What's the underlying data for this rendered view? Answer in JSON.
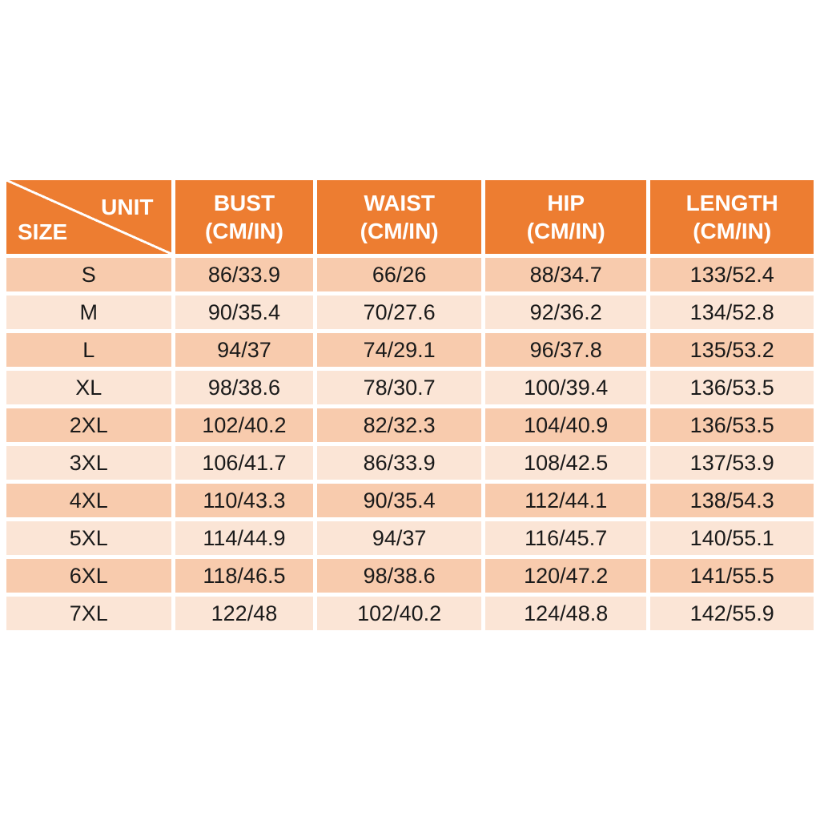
{
  "chart_data": {
    "type": "table",
    "columns": [
      "SIZE",
      "BUST (CM/IN)",
      "WAIST (CM/IN)",
      "HIP (CM/IN)",
      "LENGTH (CM/IN)"
    ],
    "rows": [
      [
        "S",
        "86/33.9",
        "66/26",
        "88/34.7",
        "133/52.4"
      ],
      [
        "M",
        "90/35.4",
        "70/27.6",
        "92/36.2",
        "134/52.8"
      ],
      [
        "L",
        "94/37",
        "74/29.1",
        "96/37.8",
        "135/53.2"
      ],
      [
        "XL",
        "98/38.6",
        "78/30.7",
        "100/39.4",
        "136/53.5"
      ],
      [
        "2XL",
        "102/40.2",
        "82/32.3",
        "104/40.9",
        "136/53.5"
      ],
      [
        "3XL",
        "106/41.7",
        "86/33.9",
        "108/42.5",
        "137/53.9"
      ],
      [
        "4XL",
        "110/43.3",
        "90/35.4",
        "112/44.1",
        "138/54.3"
      ],
      [
        "5XL",
        "114/44.9",
        "94/37",
        "116/45.7",
        "140/55.1"
      ],
      [
        "6XL",
        "118/46.5",
        "98/38.6",
        "120/47.2",
        "141/55.5"
      ],
      [
        "7XL",
        "122/48",
        "102/40.2",
        "124/48.8",
        "142/55.9"
      ]
    ]
  },
  "table": {
    "corner": {
      "unit_label": "UNIT",
      "size_label": "SIZE"
    },
    "headers": [
      {
        "line1": "BUST",
        "line2": "(CM/IN)"
      },
      {
        "line1": "WAIST",
        "line2": "(CM/IN)"
      },
      {
        "line1": "HIP",
        "line2": "(CM/IN)"
      },
      {
        "line1": "LENGTH",
        "line2": "(CM/IN)"
      }
    ],
    "rows": [
      {
        "size": "S",
        "bust": "86/33.9",
        "waist": "66/26",
        "hip": "88/34.7",
        "length": "133/52.4"
      },
      {
        "size": "M",
        "bust": "90/35.4",
        "waist": "70/27.6",
        "hip": "92/36.2",
        "length": "134/52.8"
      },
      {
        "size": "L",
        "bust": "94/37",
        "waist": "74/29.1",
        "hip": "96/37.8",
        "length": "135/53.2"
      },
      {
        "size": "XL",
        "bust": "98/38.6",
        "waist": "78/30.7",
        "hip": "100/39.4",
        "length": "136/53.5"
      },
      {
        "size": "2XL",
        "bust": "102/40.2",
        "waist": "82/32.3",
        "hip": "104/40.9",
        "length": "136/53.5"
      },
      {
        "size": "3XL",
        "bust": "106/41.7",
        "waist": "86/33.9",
        "hip": "108/42.5",
        "length": "137/53.9"
      },
      {
        "size": "4XL",
        "bust": "110/43.3",
        "waist": "90/35.4",
        "hip": "112/44.1",
        "length": "138/54.3"
      },
      {
        "size": "5XL",
        "bust": "114/44.9",
        "waist": "94/37",
        "hip": "116/45.7",
        "length": "140/55.1"
      },
      {
        "size": "6XL",
        "bust": "118/46.5",
        "waist": "98/38.6",
        "hip": "120/47.2",
        "length": "141/55.5"
      },
      {
        "size": "7XL",
        "bust": "122/48",
        "waist": "102/40.2",
        "hip": "124/48.8",
        "length": "142/55.9"
      }
    ],
    "colors": {
      "page_bg": "#FFFFFF",
      "header_bg": "#ED7D31",
      "header_text": "#FFFFFF",
      "row_dark": "#F8CBAD",
      "row_light": "#FBE5D6",
      "cell_text": "#1A1A1A",
      "border": "#FFFFFF"
    }
  }
}
